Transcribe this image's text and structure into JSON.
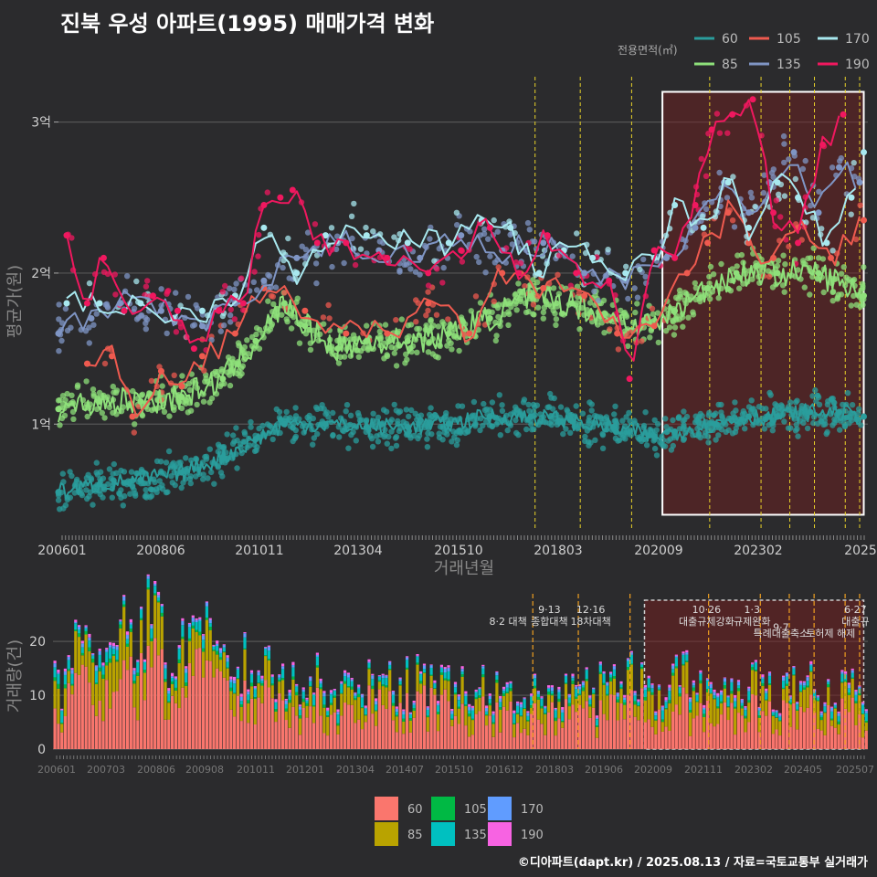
{
  "title": "진북 우성 아파트(1995) 매매가격 변화",
  "footer": "©디아파트(dapt.kr) / 2025.08.13 / 자료=국토교통부 실거래가",
  "colors": {
    "60": "#2a9d9c",
    "85": "#8ee07a",
    "105": "#ee5a4f",
    "135": "#7f95c4",
    "170": "#a8e8ef",
    "190": "#f0185f",
    "bar_60": "#fa766d",
    "bar_85": "#b9a300",
    "bar_105": "#00b944",
    "bar_135": "#00c0c0",
    "bar_170": "#609cff",
    "bar_190": "#f763e2",
    "policy_line": "#e8d22a",
    "bar_policy_line": "#f0a020"
  },
  "chart_data": [
    {
      "type": "scatter",
      "xlabel": "거래년월",
      "ylabel": "평균가(원)",
      "x_ticks": [
        "200601",
        "200806",
        "201011",
        "201304",
        "201510",
        "201803",
        "202009",
        "202302",
        "2025"
      ],
      "y_ticks": [
        "1억",
        "2억",
        "3억"
      ],
      "y_tick_values": [
        1,
        2,
        3
      ],
      "ylim": [
        0.3,
        3.3
      ],
      "xlim": [
        2006.0,
        2025.7
      ],
      "grid": true,
      "legend_title": "전용면적(㎡)",
      "legend_position": "top-right",
      "legend": [
        "60",
        "105",
        "170",
        "85",
        "135",
        "190"
      ],
      "policy_dates": [
        2017.6,
        2018.7,
        2019.95,
        2021.85,
        2023.1,
        2023.8,
        2024.4,
        2025.15,
        2025.5
      ],
      "highlight_range": [
        2020.7,
        2025.6,
        0.4,
        3.2
      ],
      "series": [
        {
          "name": "60",
          "key": "60",
          "values": [
            [
              2006.0,
              0.55
            ],
            [
              2007.0,
              0.6
            ],
            [
              2008.0,
              0.63
            ],
            [
              2009.0,
              0.68
            ],
            [
              2010.0,
              0.78
            ],
            [
              2010.8,
              0.9
            ],
            [
              2011.5,
              1.0
            ],
            [
              2012.5,
              1.0
            ],
            [
              2013.5,
              0.98
            ],
            [
              2014.5,
              0.98
            ],
            [
              2015.5,
              1.0
            ],
            [
              2016.5,
              1.05
            ],
            [
              2017.5,
              1.05
            ],
            [
              2018.5,
              1.02
            ],
            [
              2019.5,
              0.98
            ],
            [
              2020.5,
              0.92
            ],
            [
              2021.0,
              0.95
            ],
            [
              2022.0,
              1.0
            ],
            [
              2022.8,
              1.05
            ],
            [
              2023.5,
              1.05
            ],
            [
              2024.3,
              1.08
            ],
            [
              2025.0,
              1.08
            ],
            [
              2025.6,
              1.05
            ]
          ]
        },
        {
          "name": "85",
          "key": "85",
          "values": [
            [
              2006.0,
              1.1
            ],
            [
              2007.0,
              1.15
            ],
            [
              2008.0,
              1.15
            ],
            [
              2009.0,
              1.18
            ],
            [
              2010.0,
              1.3
            ],
            [
              2010.8,
              1.55
            ],
            [
              2011.5,
              1.8
            ],
            [
              2012.0,
              1.65
            ],
            [
              2012.8,
              1.5
            ],
            [
              2013.5,
              1.55
            ],
            [
              2014.5,
              1.55
            ],
            [
              2015.5,
              1.6
            ],
            [
              2016.5,
              1.7
            ],
            [
              2017.5,
              1.85
            ],
            [
              2018.5,
              1.8
            ],
            [
              2019.5,
              1.7
            ],
            [
              2020.5,
              1.65
            ],
            [
              2021.0,
              1.75
            ],
            [
              2021.8,
              1.9
            ],
            [
              2022.5,
              2.0
            ],
            [
              2023.5,
              2.0
            ],
            [
              2024.5,
              2.0
            ],
            [
              2025.6,
              1.85
            ]
          ]
        },
        {
          "name": "105",
          "key": "105",
          "values": [
            [
              2006.7,
              1.4
            ],
            [
              2007.3,
              1.45
            ],
            [
              2007.8,
              1.05
            ],
            [
              2008.5,
              1.35
            ],
            [
              2009.0,
              1.25
            ],
            [
              2009.5,
              1.45
            ],
            [
              2010.3,
              1.6
            ],
            [
              2011.0,
              1.9
            ],
            [
              2012.0,
              1.75
            ],
            [
              2013.0,
              1.6
            ],
            [
              2014.0,
              1.6
            ],
            [
              2015.0,
              1.8
            ],
            [
              2016.0,
              1.6
            ],
            [
              2016.8,
              2.0
            ],
            [
              2017.8,
              1.9
            ],
            [
              2018.8,
              1.85
            ],
            [
              2019.6,
              1.6
            ],
            [
              2020.5,
              1.65
            ],
            [
              2021.3,
              2.0
            ],
            [
              2021.8,
              2.2
            ],
            [
              2022.3,
              2.4
            ],
            [
              2022.8,
              2.2
            ],
            [
              2023.4,
              2.1
            ],
            [
              2024.0,
              2.3
            ],
            [
              2024.8,
              2.1
            ],
            [
              2025.6,
              2.35
            ]
          ]
        },
        {
          "name": "135",
          "key": "135",
          "values": [
            [
              2006.0,
              1.6
            ],
            [
              2006.8,
              1.7
            ],
            [
              2007.5,
              1.8
            ],
            [
              2008.5,
              1.75
            ],
            [
              2009.5,
              1.65
            ],
            [
              2010.3,
              1.8
            ],
            [
              2011.0,
              1.95
            ],
            [
              2011.8,
              2.1
            ],
            [
              2012.8,
              2.2
            ],
            [
              2013.8,
              2.15
            ],
            [
              2014.8,
              2.1
            ],
            [
              2015.8,
              2.25
            ],
            [
              2016.8,
              2.15
            ],
            [
              2017.8,
              2.2
            ],
            [
              2018.8,
              2.0
            ],
            [
              2019.8,
              1.95
            ],
            [
              2020.8,
              2.1
            ],
            [
              2021.5,
              2.3
            ],
            [
              2022.2,
              2.6
            ],
            [
              2022.8,
              2.4
            ],
            [
              2023.3,
              2.6
            ],
            [
              2023.9,
              2.8
            ],
            [
              2024.5,
              2.4
            ],
            [
              2025.0,
              2.7
            ],
            [
              2025.5,
              2.6
            ]
          ]
        },
        {
          "name": "170",
          "key": "170",
          "values": [
            [
              2006.2,
              1.8
            ],
            [
              2007.0,
              1.8
            ],
            [
              2008.0,
              1.8
            ],
            [
              2008.8,
              1.7
            ],
            [
              2009.5,
              1.75
            ],
            [
              2010.3,
              1.85
            ],
            [
              2011.0,
              2.3
            ],
            [
              2011.8,
              2.0
            ],
            [
              2012.5,
              2.25
            ],
            [
              2013.5,
              2.25
            ],
            [
              2014.5,
              2.2
            ],
            [
              2015.5,
              2.2
            ],
            [
              2016.3,
              2.35
            ],
            [
              2017.0,
              2.3
            ],
            [
              2017.7,
              2.0
            ],
            [
              2018.3,
              2.15
            ],
            [
              2019.0,
              2.1
            ],
            [
              2019.8,
              2.0
            ],
            [
              2020.5,
              2.1
            ],
            [
              2021.0,
              2.45
            ],
            [
              2021.7,
              2.3
            ],
            [
              2022.3,
              2.6
            ],
            [
              2022.8,
              2.3
            ],
            [
              2023.5,
              2.6
            ],
            [
              2024.0,
              2.5
            ],
            [
              2024.7,
              2.2
            ],
            [
              2025.3,
              2.5
            ],
            [
              2025.6,
              2.8
            ]
          ]
        },
        {
          "name": "190",
          "key": "190",
          "values": [
            [
              2006.2,
              2.25
            ],
            [
              2006.7,
              1.8
            ],
            [
              2007.1,
              2.1
            ],
            [
              2007.6,
              1.75
            ],
            [
              2008.3,
              1.85
            ],
            [
              2008.9,
              1.75
            ],
            [
              2009.3,
              1.5
            ],
            [
              2009.9,
              1.75
            ],
            [
              2010.5,
              1.8
            ],
            [
              2011.0,
              2.45
            ],
            [
              2011.4,
              2.5
            ],
            [
              2011.7,
              2.55
            ],
            [
              2012.3,
              2.2
            ],
            [
              2013.0,
              2.2
            ],
            [
              2014.0,
              2.1
            ],
            [
              2015.0,
              2.0
            ],
            [
              2015.8,
              2.15
            ],
            [
              2016.5,
              2.3
            ],
            [
              2017.2,
              2.0
            ],
            [
              2017.9,
              2.25
            ],
            [
              2018.6,
              2.0
            ],
            [
              2019.4,
              1.95
            ],
            [
              2019.9,
              1.3
            ],
            [
              2020.5,
              2.15
            ],
            [
              2021.0,
              2.1
            ],
            [
              2021.5,
              2.45
            ],
            [
              2021.9,
              2.95
            ],
            [
              2022.4,
              3.05
            ],
            [
              2022.9,
              3.15
            ],
            [
              2023.4,
              2.4
            ],
            [
              2024.0,
              2.2
            ],
            [
              2024.6,
              2.85
            ],
            [
              2025.1,
              3.05
            ]
          ]
        }
      ]
    },
    {
      "type": "bar",
      "stacked": true,
      "ylabel": "거래량(건)",
      "y_ticks": [
        "0",
        "10",
        "20"
      ],
      "y_tick_values": [
        0,
        10,
        20
      ],
      "ylim": [
        0,
        28
      ],
      "xlim": [
        2006.0,
        2025.7
      ],
      "x_ticks": [
        "200601",
        "200703",
        "200806",
        "200908",
        "201011",
        "201201",
        "201304",
        "201407",
        "201510",
        "201612",
        "201803",
        "201906",
        "202009",
        "202111",
        "202302",
        "202405",
        "202507"
      ],
      "legend": [
        "60",
        "85",
        "105",
        "135",
        "170",
        "190"
      ],
      "legend_position": "bottom",
      "policy_dates": [
        2017.6,
        2018.7,
        2019.95,
        2021.85,
        2023.1,
        2023.8,
        2024.4,
        2025.15,
        2025.5
      ],
      "highlight_range": [
        2020.3,
        2025.6,
        0,
        28
      ],
      "annotations": [
        {
          "x": 2017.0,
          "text": "8·2 대책",
          "row": 1
        },
        {
          "x": 2018.0,
          "text": "9·13",
          "row": 0
        },
        {
          "x": 2018.0,
          "text": "종합대책",
          "row": 1
        },
        {
          "x": 2019.0,
          "text": "12·16",
          "row": 0
        },
        {
          "x": 2019.0,
          "text": "18차대책",
          "row": 1
        },
        {
          "x": 2021.8,
          "text": "10·26",
          "row": 0
        },
        {
          "x": 2021.8,
          "text": "대출규제강화",
          "row": 1
        },
        {
          "x": 2022.9,
          "text": "1·3",
          "row": 0
        },
        {
          "x": 2022.9,
          "text": "규제완화",
          "row": 1
        },
        {
          "x": 2023.6,
          "text": "9·7",
          "row": 1.5
        },
        {
          "x": 2023.6,
          "text": "특례대출축소",
          "row": 2
        },
        {
          "x": 2024.8,
          "text": "토허제 해제",
          "row": 2
        },
        {
          "x": 2025.4,
          "text": "6·27",
          "row": 0
        },
        {
          "x": 2025.4,
          "text": "대출규",
          "row": 1
        }
      ],
      "series_monthly_avg": [
        {
          "name": "60",
          "key": "bar_60",
          "values": [
            [
              2006.0,
              8
            ],
            [
              2007.0,
              10
            ],
            [
              2008.0,
              11
            ],
            [
              2009.0,
              13
            ],
            [
              2010.0,
              9
            ],
            [
              2011.0,
              8
            ],
            [
              2012.0,
              7
            ],
            [
              2013.0,
              7
            ],
            [
              2014.0,
              7
            ],
            [
              2015.0,
              7
            ],
            [
              2016.0,
              6
            ],
            [
              2017.0,
              6
            ],
            [
              2018.0,
              6
            ],
            [
              2019.0,
              5
            ],
            [
              2020.0,
              7
            ],
            [
              2021.0,
              8
            ],
            [
              2022.0,
              5
            ],
            [
              2023.0,
              6
            ],
            [
              2024.0,
              6
            ],
            [
              2025.0,
              6
            ]
          ]
        },
        {
          "name": "85",
          "key": "bar_85",
          "values": [
            [
              2006.0,
              4
            ],
            [
              2007.0,
              5
            ],
            [
              2008.0,
              6
            ],
            [
              2009.0,
              6
            ],
            [
              2010.0,
              4
            ],
            [
              2011.0,
              3
            ],
            [
              2012.0,
              3
            ],
            [
              2013.0,
              3
            ],
            [
              2014.0,
              3
            ],
            [
              2015.0,
              3
            ],
            [
              2016.0,
              3
            ],
            [
              2017.0,
              3
            ],
            [
              2018.0,
              3
            ],
            [
              2019.0,
              3
            ],
            [
              2020.0,
              4
            ],
            [
              2021.0,
              4
            ],
            [
              2022.0,
              3
            ],
            [
              2023.0,
              3
            ],
            [
              2024.0,
              3
            ],
            [
              2025.0,
              3
            ]
          ]
        },
        {
          "name": "105",
          "key": "bar_105",
          "values": [
            [
              2006.0,
              0.5
            ],
            [
              2010.0,
              0.4
            ],
            [
              2015.0,
              0.3
            ],
            [
              2020.0,
              0.4
            ],
            [
              2025.0,
              0.3
            ]
          ]
        },
        {
          "name": "135",
          "key": "bar_135",
          "values": [
            [
              2006.0,
              1.5
            ],
            [
              2010.0,
              1.2
            ],
            [
              2015.0,
              1
            ],
            [
              2020.0,
              1
            ],
            [
              2025.0,
              1
            ]
          ]
        },
        {
          "name": "170",
          "key": "bar_170",
          "values": [
            [
              2006.0,
              0.5
            ],
            [
              2015.0,
              0.4
            ],
            [
              2025.0,
              0.4
            ]
          ]
        },
        {
          "name": "190",
          "key": "bar_190",
          "values": [
            [
              2006.0,
              0.4
            ],
            [
              2015.0,
              0.3
            ],
            [
              2025.0,
              0.3
            ]
          ]
        }
      ]
    }
  ]
}
